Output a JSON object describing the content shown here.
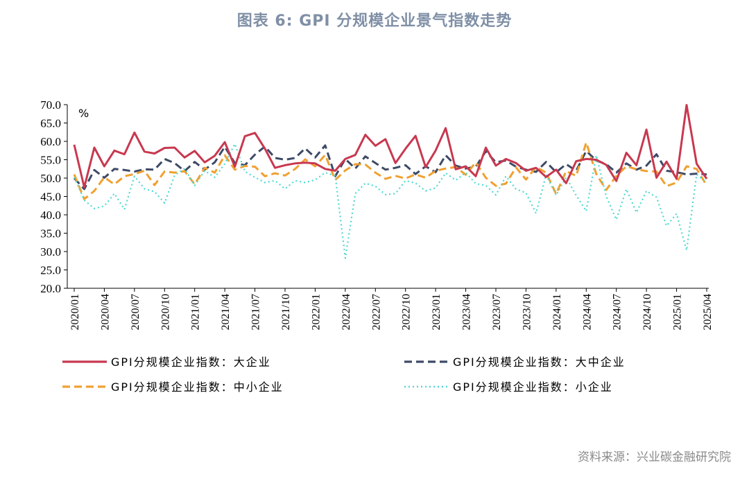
{
  "title": "图表 6:   GPI 分规模企业景气指数走势",
  "source": "资料来源：兴业碳金融研究院",
  "chart_data": {
    "type": "line",
    "unit_label": "%",
    "ylim": [
      20,
      70
    ],
    "yticks": [
      "70.0",
      "65.0",
      "60.0",
      "55.0",
      "50.0",
      "45.0",
      "40.0",
      "35.0",
      "30.0",
      "25.0",
      "20.0"
    ],
    "xtick_labels": [
      "2020/01",
      "2020/04",
      "2020/07",
      "2020/10",
      "2021/01",
      "2021/04",
      "2021/07",
      "2021/10",
      "2022/01",
      "2022/04",
      "2022/07",
      "2022/10",
      "2023/01",
      "2023/04",
      "2023/07",
      "2023/10",
      "2024/01",
      "2024/04",
      "2024/07",
      "2024/10",
      "2025/01",
      "2025/04"
    ],
    "grid": false,
    "legend_position": "bottom",
    "series": [
      {
        "name": "GPI分规模企业指数：大企业",
        "color": "#c8384f",
        "style": "solid",
        "values": [
          59.1,
          47.5,
          58.3,
          53.2,
          57.5,
          56.5,
          62.4,
          57.2,
          56.7,
          58.2,
          58.3,
          55.6,
          57.4,
          54.3,
          56.1,
          59.8,
          53.1,
          61.4,
          62.3,
          58.0,
          52.8,
          53.5,
          54.0,
          54.2,
          54.0,
          52.5,
          52.0,
          55.2,
          56.3,
          61.8,
          58.8,
          60.6,
          54.1,
          58.0,
          61.5,
          53.0,
          57.5,
          63.6,
          52.4,
          53.2,
          50.5,
          58.3,
          53.4,
          55.2,
          54.1,
          52.0,
          52.8,
          50.3,
          52.3,
          48.6,
          54.6,
          55.2,
          55.0,
          53.6,
          49.2,
          56.9,
          53.5,
          63.2,
          50.1,
          54.5,
          49.8,
          69.9,
          53.9,
          49.8
        ]
      },
      {
        "name": "GPI分规模企业指数：大中企业",
        "color": "#3d4a66",
        "style": "dashed",
        "values": [
          50.0,
          47.0,
          52.2,
          50.1,
          52.5,
          52.2,
          51.8,
          52.4,
          52.3,
          55.2,
          54.1,
          51.9,
          54.4,
          52.3,
          54.3,
          58.5,
          54.1,
          53.5,
          56.4,
          58.6,
          55.5,
          55.0,
          55.5,
          58.1,
          55.6,
          58.9,
          50.5,
          55.2,
          52.6,
          55.9,
          54.1,
          52.3,
          52.8,
          53.5,
          51.1,
          53.2,
          51.6,
          56.2,
          53.4,
          52.6,
          53.1,
          57.3,
          54.3,
          54.8,
          53.1,
          52.3,
          51.7,
          54.4,
          51.6,
          53.8,
          52.0,
          57.4,
          54.8,
          53.8,
          51.5,
          54.0,
          52.3,
          53.4,
          56.5,
          52.0,
          51.6,
          51.0,
          51.2,
          51.0
        ]
      },
      {
        "name": "GPI分规模企业指数：中小企业",
        "color": "#f0a030",
        "style": "dashed",
        "values": [
          51.0,
          44.3,
          46.5,
          50.2,
          48.3,
          50.5,
          51.1,
          52.0,
          48.1,
          51.8,
          51.5,
          51.9,
          48.3,
          52.8,
          51.5,
          56.2,
          52.3,
          53.3,
          53.1,
          50.5,
          51.3,
          50.7,
          52.5,
          55.1,
          53.2,
          56.3,
          49.5,
          52.1,
          53.8,
          53.7,
          51.5,
          49.8,
          50.6,
          49.9,
          51.0,
          50.1,
          52.0,
          52.6,
          53.0,
          50.9,
          54.3,
          50.1,
          47.9,
          48.5,
          52.9,
          49.6,
          53.0,
          51.5,
          45.7,
          51.9,
          50.6,
          59.7,
          51.1,
          46.8,
          50.6,
          53.2,
          52.4,
          51.9,
          51.8,
          47.8,
          48.8,
          53.2,
          52.5,
          48.0
        ]
      },
      {
        "name": "GPI分规模企业指数：小企业",
        "color": "#4ed8d2",
        "style": "dotted",
        "values": [
          50.2,
          44.0,
          41.7,
          42.4,
          45.8,
          41.5,
          50.5,
          47.1,
          46.3,
          43.2,
          50.8,
          52.6,
          48.0,
          52.0,
          50.2,
          53.9,
          59.3,
          51.8,
          50.2,
          48.8,
          49.3,
          47.1,
          49.3,
          48.8,
          49.5,
          51.5,
          50.6,
          28.2,
          45.8,
          48.6,
          47.8,
          45.5,
          45.8,
          49.3,
          48.6,
          46.5,
          47.3,
          51.4,
          49.4,
          51.5,
          48.5,
          48.0,
          45.4,
          50.5,
          47.0,
          46.0,
          40.4,
          50.9,
          45.3,
          50.2,
          45.3,
          41.0,
          56.2,
          45.0,
          38.7,
          47.0,
          40.6,
          46.5,
          44.8,
          37.0,
          40.3,
          30.3,
          51.0,
          48.8
        ]
      }
    ]
  }
}
